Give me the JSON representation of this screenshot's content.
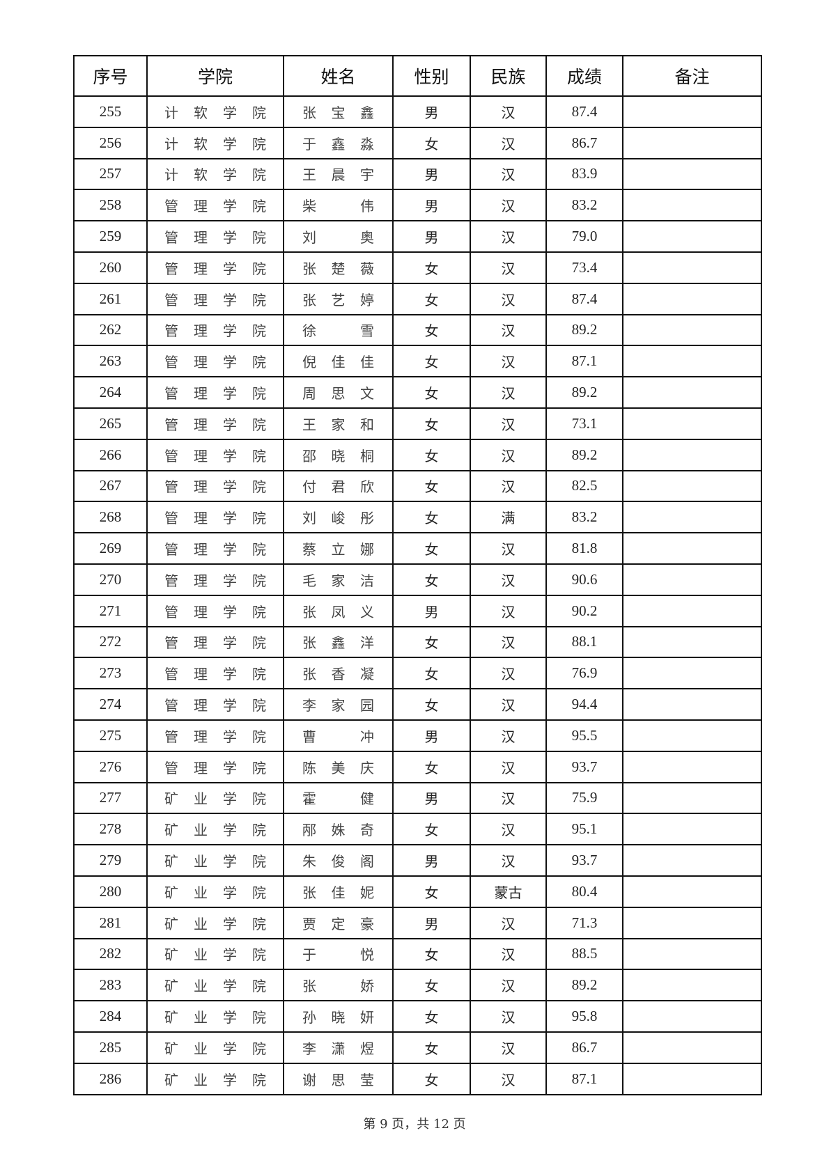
{
  "table": {
    "headers": [
      "序号",
      "学院",
      "姓名",
      "性别",
      "民族",
      "成绩",
      "备注"
    ],
    "rows": [
      [
        "255",
        "计软学院",
        "张宝鑫",
        "男",
        "汉",
        "87.4",
        ""
      ],
      [
        "256",
        "计软学院",
        "于鑫淼",
        "女",
        "汉",
        "86.7",
        ""
      ],
      [
        "257",
        "计软学院",
        "王晨宇",
        "男",
        "汉",
        "83.9",
        ""
      ],
      [
        "258",
        "管理学院",
        "柴伟",
        "男",
        "汉",
        "83.2",
        ""
      ],
      [
        "259",
        "管理学院",
        "刘奥",
        "男",
        "汉",
        "79.0",
        ""
      ],
      [
        "260",
        "管理学院",
        "张楚薇",
        "女",
        "汉",
        "73.4",
        ""
      ],
      [
        "261",
        "管理学院",
        "张艺婷",
        "女",
        "汉",
        "87.4",
        ""
      ],
      [
        "262",
        "管理学院",
        "徐雪",
        "女",
        "汉",
        "89.2",
        ""
      ],
      [
        "263",
        "管理学院",
        "倪佳佳",
        "女",
        "汉",
        "87.1",
        ""
      ],
      [
        "264",
        "管理学院",
        "周思文",
        "女",
        "汉",
        "89.2",
        ""
      ],
      [
        "265",
        "管理学院",
        "王家和",
        "女",
        "汉",
        "73.1",
        ""
      ],
      [
        "266",
        "管理学院",
        "邵晓桐",
        "女",
        "汉",
        "89.2",
        ""
      ],
      [
        "267",
        "管理学院",
        "付君欣",
        "女",
        "汉",
        "82.5",
        ""
      ],
      [
        "268",
        "管理学院",
        "刘峻彤",
        "女",
        "满",
        "83.2",
        ""
      ],
      [
        "269",
        "管理学院",
        "蔡立娜",
        "女",
        "汉",
        "81.8",
        ""
      ],
      [
        "270",
        "管理学院",
        "毛家洁",
        "女",
        "汉",
        "90.6",
        ""
      ],
      [
        "271",
        "管理学院",
        "张凤义",
        "男",
        "汉",
        "90.2",
        ""
      ],
      [
        "272",
        "管理学院",
        "张鑫洋",
        "女",
        "汉",
        "88.1",
        ""
      ],
      [
        "273",
        "管理学院",
        "张香凝",
        "女",
        "汉",
        "76.9",
        ""
      ],
      [
        "274",
        "管理学院",
        "李家园",
        "女",
        "汉",
        "94.4",
        ""
      ],
      [
        "275",
        "管理学院",
        "曹冲",
        "男",
        "汉",
        "95.5",
        ""
      ],
      [
        "276",
        "管理学院",
        "陈美庆",
        "女",
        "汉",
        "93.7",
        ""
      ],
      [
        "277",
        "矿业学院",
        "霍健",
        "男",
        "汉",
        "75.9",
        ""
      ],
      [
        "278",
        "矿业学院",
        "邴姝奇",
        "女",
        "汉",
        "95.1",
        ""
      ],
      [
        "279",
        "矿业学院",
        "朱俊阁",
        "男",
        "汉",
        "93.7",
        ""
      ],
      [
        "280",
        "矿业学院",
        "张佳妮",
        "女",
        "蒙古",
        "80.4",
        ""
      ],
      [
        "281",
        "矿业学院",
        "贾定豪",
        "男",
        "汉",
        "71.3",
        ""
      ],
      [
        "282",
        "矿业学院",
        "于悦",
        "女",
        "汉",
        "88.5",
        ""
      ],
      [
        "283",
        "矿业学院",
        "张娇",
        "女",
        "汉",
        "89.2",
        ""
      ],
      [
        "284",
        "矿业学院",
        "孙晓妍",
        "女",
        "汉",
        "95.8",
        ""
      ],
      [
        "285",
        "矿业学院",
        "李潇煜",
        "女",
        "汉",
        "86.7",
        ""
      ],
      [
        "286",
        "矿业学院",
        "谢思莹",
        "女",
        "汉",
        "87.1",
        ""
      ]
    ]
  },
  "footer": {
    "text": "第 9 页，共 12 页"
  }
}
